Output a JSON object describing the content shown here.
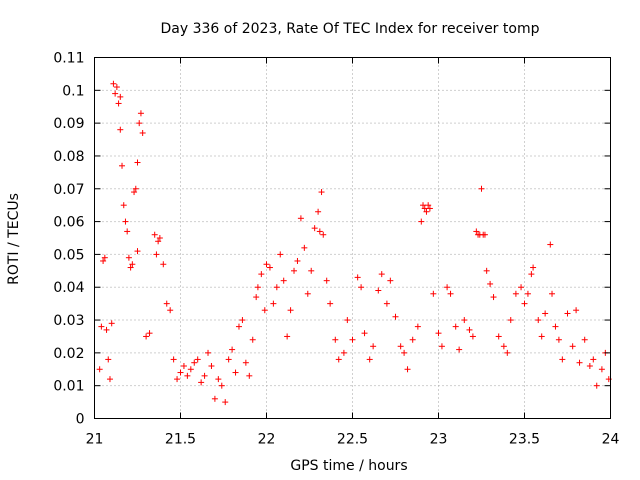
{
  "chart_data": {
    "type": "scatter",
    "title": "Day 336 of 2023, Rate Of TEC Index for receiver tomp",
    "xlabel": "GPS time / hours",
    "ylabel": "ROTI / TECUs",
    "xlim": [
      21,
      24
    ],
    "ylim": [
      0,
      0.11
    ],
    "x_ticks": [
      21,
      21.5,
      22,
      22.5,
      23,
      23.5,
      24
    ],
    "x_tick_labels": [
      "21",
      "21.5",
      "22",
      "22.5",
      "23",
      "23.5",
      "24"
    ],
    "y_ticks": [
      0,
      0.01,
      0.02,
      0.03,
      0.04,
      0.05,
      0.06,
      0.07,
      0.08,
      0.09,
      0.1,
      0.11
    ],
    "y_tick_labels": [
      "0",
      "0.01",
      "0.02",
      "0.03",
      "0.04",
      "0.05",
      "0.06",
      "0.07",
      "0.08",
      "0.09",
      "0.1",
      "0.11"
    ],
    "grid": true,
    "marker": "+",
    "color": "#ff0000",
    "series": [
      {
        "points": [
          [
            21.03,
            0.015
          ],
          [
            21.04,
            0.028
          ],
          [
            21.05,
            0.048
          ],
          [
            21.06,
            0.049
          ],
          [
            21.07,
            0.027
          ],
          [
            21.08,
            0.018
          ],
          [
            21.09,
            0.012
          ],
          [
            21.1,
            0.029
          ],
          [
            21.11,
            0.102
          ],
          [
            21.12,
            0.099
          ],
          [
            21.13,
            0.101
          ],
          [
            21.14,
            0.096
          ],
          [
            21.15,
            0.098
          ],
          [
            21.15,
            0.088
          ],
          [
            21.16,
            0.077
          ],
          [
            21.17,
            0.065
          ],
          [
            21.18,
            0.06
          ],
          [
            21.19,
            0.057
          ],
          [
            21.2,
            0.049
          ],
          [
            21.21,
            0.046
          ],
          [
            21.22,
            0.047
          ],
          [
            21.23,
            0.069
          ],
          [
            21.24,
            0.07
          ],
          [
            21.25,
            0.078
          ],
          [
            21.25,
            0.051
          ],
          [
            21.26,
            0.09
          ],
          [
            21.27,
            0.093
          ],
          [
            21.28,
            0.087
          ],
          [
            21.3,
            0.025
          ],
          [
            21.32,
            0.026
          ],
          [
            21.35,
            0.056
          ],
          [
            21.36,
            0.05
          ],
          [
            21.37,
            0.054
          ],
          [
            21.38,
            0.055
          ],
          [
            21.4,
            0.047
          ],
          [
            21.42,
            0.035
          ],
          [
            21.44,
            0.033
          ],
          [
            21.46,
            0.018
          ],
          [
            21.48,
            0.012
          ],
          [
            21.5,
            0.014
          ],
          [
            21.52,
            0.016
          ],
          [
            21.54,
            0.013
          ],
          [
            21.56,
            0.015
          ],
          [
            21.58,
            0.017
          ],
          [
            21.6,
            0.018
          ],
          [
            21.62,
            0.011
          ],
          [
            21.64,
            0.013
          ],
          [
            21.66,
            0.02
          ],
          [
            21.68,
            0.016
          ],
          [
            21.7,
            0.006
          ],
          [
            21.72,
            0.012
          ],
          [
            21.74,
            0.01
          ],
          [
            21.76,
            0.005
          ],
          [
            21.78,
            0.018
          ],
          [
            21.8,
            0.021
          ],
          [
            21.82,
            0.014
          ],
          [
            21.84,
            0.028
          ],
          [
            21.86,
            0.03
          ],
          [
            21.88,
            0.017
          ],
          [
            21.9,
            0.013
          ],
          [
            21.92,
            0.024
          ],
          [
            21.94,
            0.037
          ],
          [
            21.95,
            0.04
          ],
          [
            21.97,
            0.044
          ],
          [
            21.99,
            0.033
          ],
          [
            22.0,
            0.047
          ],
          [
            22.02,
            0.046
          ],
          [
            22.04,
            0.035
          ],
          [
            22.06,
            0.04
          ],
          [
            22.08,
            0.05
          ],
          [
            22.1,
            0.042
          ],
          [
            22.12,
            0.025
          ],
          [
            22.14,
            0.033
          ],
          [
            22.16,
            0.045
          ],
          [
            22.18,
            0.048
          ],
          [
            22.2,
            0.061
          ],
          [
            22.22,
            0.052
          ],
          [
            22.24,
            0.038
          ],
          [
            22.26,
            0.045
          ],
          [
            22.28,
            0.058
          ],
          [
            22.3,
            0.063
          ],
          [
            22.31,
            0.057
          ],
          [
            22.32,
            0.069
          ],
          [
            22.33,
            0.056
          ],
          [
            22.35,
            0.042
          ],
          [
            22.37,
            0.035
          ],
          [
            22.4,
            0.024
          ],
          [
            22.42,
            0.018
          ],
          [
            22.45,
            0.02
          ],
          [
            22.47,
            0.03
          ],
          [
            22.5,
            0.024
          ],
          [
            22.53,
            0.043
          ],
          [
            22.55,
            0.04
          ],
          [
            22.57,
            0.026
          ],
          [
            22.6,
            0.018
          ],
          [
            22.62,
            0.022
          ],
          [
            22.65,
            0.039
          ],
          [
            22.67,
            0.044
          ],
          [
            22.7,
            0.035
          ],
          [
            22.72,
            0.042
          ],
          [
            22.75,
            0.031
          ],
          [
            22.78,
            0.022
          ],
          [
            22.8,
            0.02
          ],
          [
            22.82,
            0.015
          ],
          [
            22.85,
            0.024
          ],
          [
            22.88,
            0.028
          ],
          [
            22.9,
            0.06
          ],
          [
            22.91,
            0.065
          ],
          [
            22.92,
            0.064
          ],
          [
            22.93,
            0.063
          ],
          [
            22.94,
            0.065
          ],
          [
            22.95,
            0.064
          ],
          [
            22.97,
            0.038
          ],
          [
            23.0,
            0.026
          ],
          [
            23.02,
            0.022
          ],
          [
            23.05,
            0.04
          ],
          [
            23.07,
            0.038
          ],
          [
            23.1,
            0.028
          ],
          [
            23.12,
            0.021
          ],
          [
            23.15,
            0.03
          ],
          [
            23.18,
            0.027
          ],
          [
            23.2,
            0.025
          ],
          [
            23.22,
            0.057
          ],
          [
            23.23,
            0.056
          ],
          [
            23.24,
            0.056
          ],
          [
            23.25,
            0.07
          ],
          [
            23.26,
            0.056
          ],
          [
            23.27,
            0.056
          ],
          [
            23.28,
            0.045
          ],
          [
            23.3,
            0.041
          ],
          [
            23.32,
            0.037
          ],
          [
            23.35,
            0.025
          ],
          [
            23.38,
            0.022
          ],
          [
            23.4,
            0.02
          ],
          [
            23.42,
            0.03
          ],
          [
            23.45,
            0.038
          ],
          [
            23.48,
            0.04
          ],
          [
            23.5,
            0.035
          ],
          [
            23.52,
            0.038
          ],
          [
            23.54,
            0.044
          ],
          [
            23.55,
            0.046
          ],
          [
            23.58,
            0.03
          ],
          [
            23.6,
            0.025
          ],
          [
            23.62,
            0.032
          ],
          [
            23.65,
            0.053
          ],
          [
            23.66,
            0.038
          ],
          [
            23.68,
            0.028
          ],
          [
            23.7,
            0.024
          ],
          [
            23.72,
            0.018
          ],
          [
            23.75,
            0.032
          ],
          [
            23.78,
            0.022
          ],
          [
            23.8,
            0.033
          ],
          [
            23.82,
            0.017
          ],
          [
            23.85,
            0.024
          ],
          [
            23.88,
            0.016
          ],
          [
            23.9,
            0.018
          ],
          [
            23.92,
            0.01
          ],
          [
            23.95,
            0.015
          ],
          [
            23.97,
            0.02
          ],
          [
            23.99,
            0.012
          ]
        ]
      }
    ]
  }
}
